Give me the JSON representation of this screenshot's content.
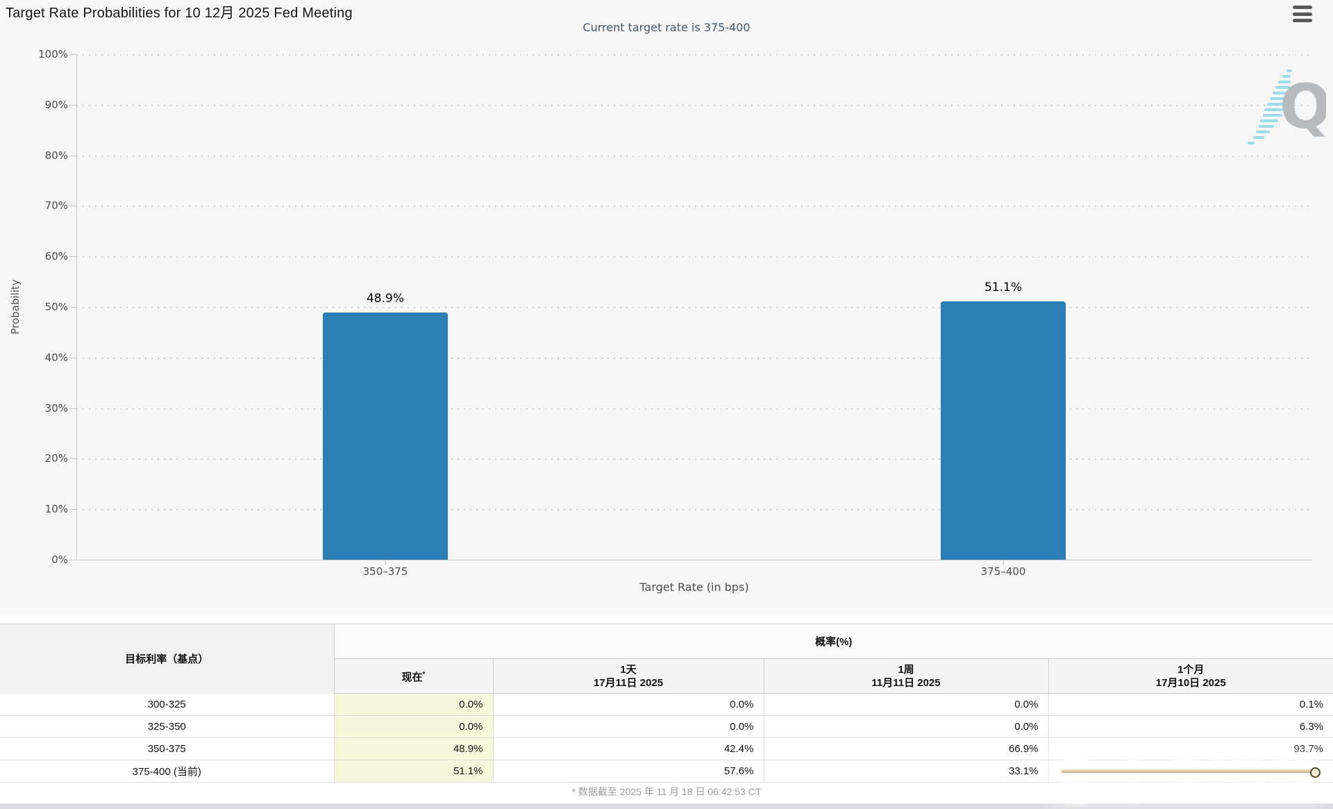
{
  "header": {
    "title": "Target Rate Probabilities for 10 12月 2025 Fed Meeting"
  },
  "menu": {
    "icon_name": "hamburger-menu-icon"
  },
  "chart": {
    "subtitle": "Current target rate is 375-400",
    "y_axis_title": "Probability",
    "x_axis_title": "Target Rate (in bps)",
    "y_ticks": [
      "100%",
      "90%",
      "80%",
      "70%",
      "60%",
      "50%",
      "40%",
      "30%",
      "20%",
      "10%",
      "0%"
    ],
    "bar_color": "#2b7fb5",
    "watermark_letter": "Q"
  },
  "chart_data": {
    "type": "bar",
    "title": "Target Rate Probabilities for 10 12月 2025 Fed Meeting",
    "subtitle": "Current target rate is 375-400",
    "categories": [
      "350–375",
      "375–400"
    ],
    "values": [
      48.9,
      51.1
    ],
    "value_labels": [
      "48.9%",
      "51.1%"
    ],
    "xlabel": "Target Rate (in bps)",
    "ylabel": "Probability",
    "ylim": [
      0,
      100
    ],
    "y_tick_step": 10,
    "grid": "dotted horizontal gridlines",
    "legend": "none",
    "bar_color": "#2b7fb5"
  },
  "table": {
    "rate_column_header": "目标利率（基点）",
    "group_header": "概率(%)",
    "columns": [
      {
        "line1": "现在",
        "sup": "*",
        "line2": ""
      },
      {
        "line1": "1天",
        "line2": "17月11日 2025"
      },
      {
        "line1": "1周",
        "line2": "11月11日 2025"
      },
      {
        "line1": "1个月",
        "line2": "17月10日 2025"
      }
    ],
    "rows": [
      {
        "rate": "300-325",
        "values": [
          "0.0%",
          "0.0%",
          "0.0%",
          "0.1%"
        ]
      },
      {
        "rate": "325-350",
        "values": [
          "0.0%",
          "0.0%",
          "0.0%",
          "6.3%"
        ]
      },
      {
        "rate": "350-375",
        "values": [
          "48.9%",
          "42.4%",
          "66.9%",
          "93.7%"
        ]
      },
      {
        "rate": "375-400 (当前)",
        "values": [
          "51.1%",
          "57.6%",
          "33.1%",
          ""
        ]
      }
    ],
    "highlight_color": "#f7f7dc"
  },
  "footer": {
    "note": "* 数据截至 2025 年 11 月 18 日 06:42:53 CT"
  }
}
